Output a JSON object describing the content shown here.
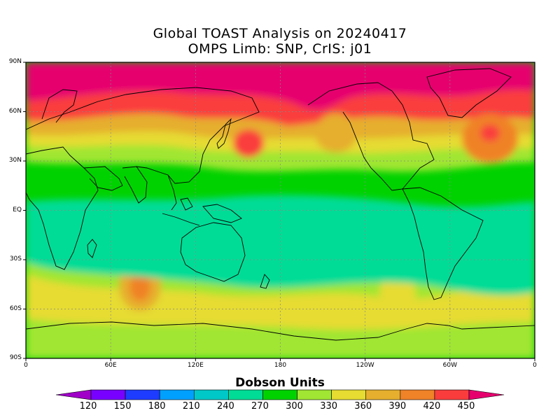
{
  "title": {
    "line1": "Global TOAST Analysis on 20240417",
    "line2": "OMPS Limb: SNP,  CrIS: j01"
  },
  "map": {
    "projection": "equirectangular",
    "lat_range": [
      -90,
      90
    ],
    "lon_range": [
      0,
      360
    ],
    "grid": true,
    "coastlines": true,
    "y_ticks": [
      {
        "lat": 90,
        "label": "90N"
      },
      {
        "lat": 60,
        "label": "60N"
      },
      {
        "lat": 30,
        "label": "30N"
      },
      {
        "lat": 0,
        "label": "EQ"
      },
      {
        "lat": -30,
        "label": "30S"
      },
      {
        "lat": -60,
        "label": "60S"
      },
      {
        "lat": -90,
        "label": "90S"
      }
    ],
    "x_ticks": [
      {
        "lon": 0,
        "label": "0"
      },
      {
        "lon": 60,
        "label": "60E"
      },
      {
        "lon": 120,
        "label": "120E"
      },
      {
        "lon": 180,
        "label": "180"
      },
      {
        "lon": 240,
        "label": "120W"
      },
      {
        "lon": 300,
        "label": "60W"
      },
      {
        "lon": 360,
        "label": "0"
      }
    ],
    "field_summary": "Total column ozone: high values (420-450+ DU) north of ~50N, low values (240-270 DU) across the tropics, moderate (300-360 DU) in southern mid-latitudes."
  },
  "colorbar": {
    "title": "Dobson Units",
    "levels": [
      120,
      150,
      180,
      210,
      240,
      270,
      300,
      330,
      360,
      390,
      420,
      450
    ],
    "colors": [
      "#a000c8",
      "#7800ff",
      "#1e3cff",
      "#00a0ff",
      "#00c8c8",
      "#00dc96",
      "#00d200",
      "#a0e632",
      "#e6dc32",
      "#e6af2d",
      "#f08228",
      "#fa3c3c",
      "#e6006e"
    ],
    "under_color": "#a000c8",
    "over_color": "#e6006e"
  }
}
